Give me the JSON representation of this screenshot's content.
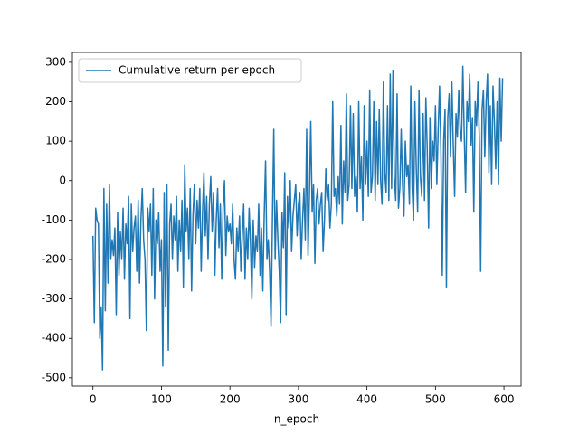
{
  "chart_data": {
    "type": "line",
    "xlabel": "n_epoch",
    "legend": "upper left",
    "xlim": [
      -30,
      625
    ],
    "ylim": [
      -521,
      325
    ],
    "xticks": [
      0,
      100,
      200,
      300,
      400,
      500,
      600
    ],
    "yticks": [
      -500,
      -400,
      -300,
      -200,
      -100,
      0,
      100,
      200,
      300
    ],
    "x": [
      0,
      2,
      4,
      6,
      8,
      10,
      12,
      14,
      16,
      18,
      20,
      22,
      24,
      26,
      28,
      30,
      32,
      34,
      36,
      38,
      40,
      42,
      44,
      46,
      48,
      50,
      52,
      54,
      56,
      58,
      60,
      62,
      64,
      66,
      68,
      70,
      72,
      74,
      76,
      78,
      80,
      82,
      84,
      86,
      88,
      90,
      92,
      94,
      96,
      98,
      100,
      102,
      104,
      106,
      108,
      110,
      112,
      114,
      116,
      118,
      120,
      122,
      124,
      126,
      128,
      130,
      132,
      134,
      136,
      138,
      140,
      142,
      144,
      146,
      148,
      150,
      152,
      154,
      156,
      158,
      160,
      162,
      164,
      166,
      168,
      170,
      172,
      174,
      176,
      178,
      180,
      182,
      184,
      186,
      188,
      190,
      192,
      194,
      196,
      198,
      200,
      202,
      204,
      206,
      208,
      210,
      212,
      214,
      216,
      218,
      220,
      222,
      224,
      226,
      228,
      230,
      232,
      234,
      236,
      238,
      240,
      242,
      244,
      246,
      248,
      250,
      252,
      254,
      256,
      258,
      260,
      262,
      264,
      266,
      268,
      270,
      272,
      274,
      276,
      278,
      280,
      282,
      284,
      286,
      288,
      290,
      292,
      294,
      296,
      298,
      300,
      302,
      304,
      306,
      308,
      310,
      312,
      314,
      316,
      318,
      320,
      322,
      324,
      326,
      328,
      330,
      332,
      334,
      336,
      338,
      340,
      342,
      344,
      346,
      348,
      350,
      352,
      354,
      356,
      358,
      360,
      362,
      364,
      366,
      368,
      370,
      372,
      374,
      376,
      378,
      380,
      382,
      384,
      386,
      388,
      390,
      392,
      394,
      396,
      398,
      400,
      402,
      404,
      406,
      408,
      410,
      412,
      414,
      416,
      418,
      420,
      422,
      424,
      426,
      428,
      430,
      432,
      434,
      436,
      438,
      440,
      442,
      444,
      446,
      448,
      450,
      452,
      454,
      456,
      458,
      460,
      462,
      464,
      466,
      468,
      470,
      472,
      474,
      476,
      478,
      480,
      482,
      484,
      486,
      488,
      490,
      492,
      494,
      496,
      498,
      500,
      502,
      504,
      506,
      508,
      510,
      512,
      514,
      516,
      518,
      520,
      522,
      524,
      526,
      528,
      530,
      532,
      534,
      536,
      538,
      540,
      542,
      544,
      546,
      548,
      550,
      552,
      554,
      556,
      558,
      560,
      562,
      564,
      566,
      568,
      570,
      572,
      574,
      576,
      578,
      580,
      582,
      584,
      586,
      588,
      590,
      592,
      594,
      596,
      598
    ],
    "series": [
      {
        "name": "Cumulative return per epoch",
        "color": "#1f77b4",
        "values": [
          -140,
          -360,
          -70,
          -100,
          -110,
          -400,
          -320,
          -480,
          -20,
          -330,
          -60,
          -260,
          -10,
          -200,
          -150,
          -190,
          -120,
          -340,
          -80,
          -240,
          -130,
          -200,
          -70,
          -250,
          -110,
          -160,
          -40,
          -350,
          -60,
          -180,
          -120,
          -90,
          -230,
          -50,
          -260,
          -100,
          -20,
          -150,
          -200,
          -380,
          -70,
          -130,
          -60,
          -240,
          -20,
          -300,
          -100,
          -160,
          -80,
          -230,
          -150,
          -470,
          -30,
          -320,
          -10,
          -430,
          -110,
          -60,
          -200,
          -90,
          -150,
          -40,
          -230,
          -100,
          -180,
          -50,
          -270,
          40,
          -130,
          -70,
          -200,
          -20,
          -280,
          -90,
          -10,
          -160,
          -50,
          -120,
          -20,
          -230,
          -80,
          20,
          -140,
          -40,
          -200,
          -60,
          10,
          -130,
          -30,
          -240,
          -100,
          -20,
          -170,
          -60,
          -250,
          -70,
          0,
          -190,
          -90,
          -130,
          -110,
          -160,
          -60,
          -200,
          -250,
          -120,
          -180,
          -90,
          -230,
          -140,
          -60,
          -250,
          -120,
          -200,
          -70,
          -160,
          -300,
          -100,
          -220,
          -140,
          -180,
          -60,
          -240,
          -120,
          -280,
          -90,
          50,
          -200,
          -150,
          -230,
          -370,
          -100,
          130,
          -200,
          -50,
          -150,
          -230,
          -360,
          -80,
          -170,
          20,
          -340,
          -40,
          -120,
          0,
          -180,
          -90,
          -50,
          -10,
          -140,
          -60,
          -30,
          -200,
          -100,
          -20,
          -150,
          130,
          -190,
          -40,
          150,
          -80,
          -10,
          -210,
          -50,
          -20,
          -110,
          -60,
          -30,
          -180,
          -100,
          30,
          -50,
          -10,
          -120,
          -60,
          200,
          -40,
          -20,
          -90,
          10,
          -60,
          140,
          -110,
          50,
          -30,
          220,
          -50,
          -10,
          190,
          -20,
          170,
          -40,
          10,
          -80,
          200,
          -20,
          60,
          -100,
          190,
          -10,
          100,
          -40,
          230,
          -30,
          10,
          200,
          -50,
          150,
          -10,
          180,
          0,
          -60,
          250,
          20,
          -30,
          190,
          -50,
          270,
          -20,
          280,
          10,
          -50,
          220,
          -70,
          -20,
          130,
          -10,
          -90,
          100,
          10,
          40,
          -60,
          240,
          -20,
          -100,
          200,
          30,
          -80,
          230,
          10,
          -40,
          170,
          -50,
          210,
          80,
          -120,
          160,
          -20,
          100,
          50,
          190,
          -10,
          130,
          240,
          70,
          -240,
          100,
          180,
          -270,
          160,
          220,
          60,
          250,
          90,
          -40,
          170,
          110,
          230,
          130,
          100,
          290,
          120,
          -30,
          200,
          150,
          270,
          90,
          160,
          -80,
          200,
          140,
          250,
          110,
          -230,
          180,
          230,
          60,
          200,
          270,
          20,
          190,
          -10,
          240,
          150,
          30,
          200,
          -10,
          260,
          100,
          260
        ]
      }
    ]
  }
}
